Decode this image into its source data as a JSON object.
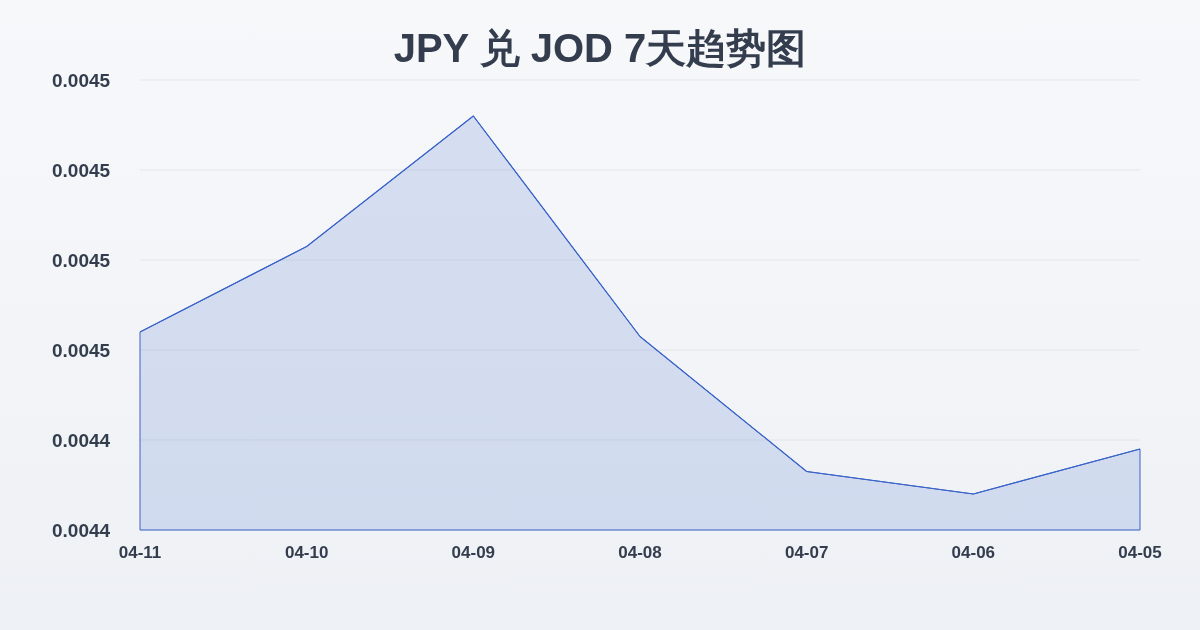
{
  "chart_data": {
    "type": "area",
    "title": "JPY 兑 JOD 7天趋势图",
    "categories": [
      "04-11",
      "04-10",
      "04-09",
      "04-08",
      "04-07",
      "04-06",
      "04-05"
    ],
    "series": [
      {
        "color": "#3a63c8",
        "values": [
          0.004464,
          0.004483,
          0.004512,
          0.004463,
          0.004433,
          0.004428,
          0.004438
        ]
      }
    ],
    "ylim": [
      0.00442,
      0.00452
    ],
    "yticks": [
      {
        "value": 0.00442,
        "label": "0.0044"
      },
      {
        "value": 0.00444,
        "label": "0.0044"
      },
      {
        "value": 0.00446,
        "label": "0.0045"
      },
      {
        "value": 0.00448,
        "label": "0.0045"
      },
      {
        "value": 0.0045,
        "label": "0.0045"
      },
      {
        "value": 0.00452,
        "label": "0.0045"
      }
    ],
    "grid": "y"
  }
}
